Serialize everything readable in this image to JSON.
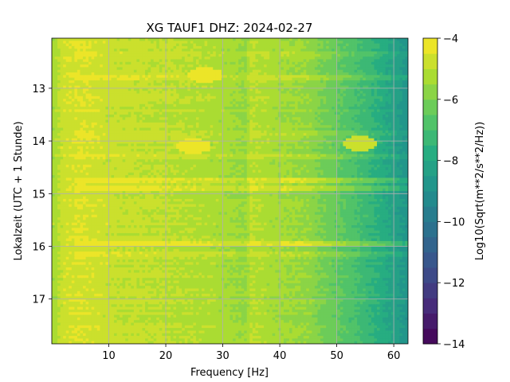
{
  "chart_data": {
    "type": "heatmap",
    "title": "XG TAUF1  DHZ: 2024-02-27",
    "xlabel": "Frequency [Hz]",
    "ylabel": "Lokalzeit (UTC + 1 Stunde)",
    "colorbar_label": "Log10(Sqrt(m**2/s**2/Hz))",
    "xlim": [
      0,
      62.5
    ],
    "ylim": [
      17.85,
      12.05
    ],
    "y_inverted": true,
    "x_ticks": [
      10,
      20,
      30,
      40,
      50,
      60
    ],
    "y_ticks": [
      13,
      14,
      15,
      16,
      17
    ],
    "grid": true,
    "colorscale": "viridis",
    "color_range": [
      -14,
      -4
    ],
    "colorbar_ticks": [
      -4,
      -6,
      -8,
      -10,
      -12,
      -14
    ],
    "colorbar_levels": 20,
    "value_profile_by_frequency": {
      "x": [
        0.5,
        2,
        5,
        10,
        15,
        20,
        25,
        30,
        34,
        35,
        40,
        45,
        47,
        50,
        55,
        60,
        62.5
      ],
      "value": [
        -5.3,
        -4.7,
        -4.5,
        -4.8,
        -4.9,
        -5.0,
        -5.1,
        -5.3,
        -5.6,
        -5.0,
        -5.4,
        -5.6,
        -6.0,
        -6.4,
        -7.2,
        -8.2,
        -8.8
      ]
    },
    "bright_bands": [
      {
        "time": 12.35,
        "value_offset": 0.4
      },
      {
        "time": 12.8,
        "value_offset": 0.5
      },
      {
        "time": 13.85,
        "value_offset": 0.4
      },
      {
        "time": 14.3,
        "value_offset": 0.4
      },
      {
        "time": 14.75,
        "value_offset": 0.9
      },
      {
        "time": 14.9,
        "value_offset": 0.7
      },
      {
        "time": 15.95,
        "value_offset": 1.0
      },
      {
        "time": 16.15,
        "value_offset": 0.4
      }
    ],
    "hot_spots": [
      {
        "x": 27,
        "time": 12.75,
        "value": -4.2
      },
      {
        "x": 25,
        "time": 14.1,
        "value": -4.3
      },
      {
        "x": 54,
        "time": 14.05,
        "value": -5.0
      }
    ]
  }
}
